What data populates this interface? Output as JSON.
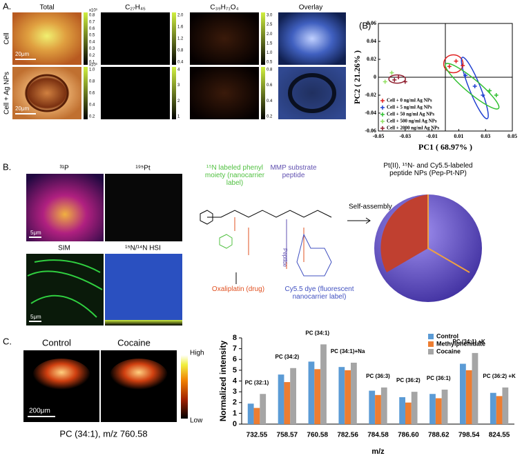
{
  "panel_a": {
    "label": "A.",
    "columns": [
      "Total",
      "C₂₇H₄₅",
      "C₃₉H₇₁O₄",
      "Overlay"
    ],
    "rows": [
      "Cell",
      "Cell + Ag NPs"
    ],
    "scale_bars": [
      "20μm",
      "20μm"
    ],
    "colorbars": [
      {
        "exponent": "x10³",
        "ticks": [
          "0.8",
          "0.7",
          "0.6",
          "0.5",
          "0.4",
          "0.3",
          "0.2",
          "0.1"
        ]
      },
      {
        "ticks": [
          "2.0",
          "1.6",
          "1.2",
          "0.8",
          "0.4"
        ]
      },
      {
        "ticks": [
          "3.0",
          "2.5",
          "2.0",
          "1.5",
          "1.0",
          "0.5"
        ]
      },
      {
        "exponent": "x10³",
        "ticks": [
          "1.0",
          "0.8",
          "0.6",
          "0.4",
          "0.2"
        ]
      },
      {
        "ticks": [
          "4",
          "3",
          "2",
          "1"
        ]
      },
      {
        "ticks": [
          "0.8",
          "0.6",
          "0.4",
          "0.2"
        ]
      }
    ],
    "pca": {
      "type": "scatter",
      "label": "(B)",
      "xlabel": "PC1 ( 68.97% )",
      "ylabel": "PC2 ( 21.26% )",
      "xlim": [
        -0.05,
        0.05
      ],
      "ylim": [
        -0.06,
        0.06
      ],
      "xticks": [
        -0.05,
        -0.03,
        -0.01,
        0.01,
        0.03,
        0.05
      ],
      "yticks": [
        0.06,
        0.04,
        0.02,
        0,
        -0.02,
        -0.04,
        -0.06
      ],
      "series": [
        {
          "name": "Cell + 0 ng/ml Ag NPs",
          "color": "#e02020",
          "x": [
            0.003,
            0.008,
            0.013
          ],
          "y": [
            0.012,
            0.018,
            0.013
          ]
        },
        {
          "name": "Cell + 5 ng/ml Ag NPs",
          "color": "#2040d0",
          "x": [
            0.015,
            0.022,
            0.028
          ],
          "y": [
            0.002,
            -0.01,
            -0.02
          ]
        },
        {
          "name": "Cell + 50 ng/ml Ag NPs",
          "color": "#30c030",
          "x": [
            0.033,
            0.038
          ],
          "y": [
            -0.015,
            -0.02
          ]
        },
        {
          "name": "Cell + 500 ng/ml Ag NPs",
          "color": "#90e060",
          "x": [
            -0.045,
            -0.04
          ],
          "y": [
            -0.005,
            0.005
          ]
        },
        {
          "name": "Cell + 2000 ng/ml Ag NPs",
          "color": "#902030",
          "x": [
            -0.035,
            -0.03,
            -0.038
          ],
          "y": [
            0.0,
            -0.005,
            -0.003
          ]
        }
      ]
    }
  },
  "panel_b": {
    "label": "B.",
    "images": [
      "³¹P",
      "¹⁹⁵Pt",
      "SIM",
      "¹⁵N/¹⁴N HSI"
    ],
    "scale_bars": [
      "5μm",
      "5μm"
    ],
    "scheme": {
      "phenyl_label": "¹⁵N labeled phenyl moiety (nanocarrier label)",
      "mmp_label": "MMP substrate peptide",
      "drug_label": "Oxaliplatin (drug)",
      "dye_label": "Cy5.5 dye (fluorescent nanocarrier label)",
      "peptide": "Peptide",
      "arrow_label": "Self-assembly",
      "product_label": "Pt(II), ¹⁵N- and Cy5.5-labeled peptide NPs (Pep-Pt-NP)"
    }
  },
  "panel_c": {
    "label": "C.",
    "images": [
      "Control",
      "Cocaine"
    ],
    "colorbar": [
      "High",
      "Low"
    ],
    "scale_bar": "200μm",
    "caption": "PC (34:1), m/z 760.58",
    "chart": {
      "type": "bar",
      "xlabel": "m/z",
      "ylabel": "Normalized intensity",
      "categories": [
        "732.55",
        "758.57",
        "760.58",
        "782.56",
        "784.58",
        "786.60",
        "788.62",
        "798.54",
        "824.55"
      ],
      "annotations": [
        "PC (32:1)",
        "PC (34:2)",
        "PC (34:1)",
        "PC (34:1)+Na",
        "PC (36:3)",
        "PC (36:2)",
        "PC (36:1)",
        "PC (34:1) +K",
        "PC (36:2) +K"
      ],
      "ylim": [
        0,
        8
      ],
      "yticks": [
        0,
        1,
        2,
        3,
        4,
        5,
        6,
        7,
        8
      ],
      "series": [
        {
          "name": "Control",
          "color": "#5b9bd5",
          "values": [
            1.9,
            4.6,
            5.8,
            5.3,
            3.1,
            2.5,
            2.8,
            5.6,
            2.9
          ]
        },
        {
          "name": "Methylphenidate",
          "color": "#ed7d31",
          "values": [
            1.5,
            3.9,
            5.1,
            5.0,
            2.7,
            2.0,
            2.4,
            5.0,
            2.6
          ]
        },
        {
          "name": "Cocaine",
          "color": "#a5a5a5",
          "values": [
            2.8,
            5.2,
            7.4,
            5.7,
            3.4,
            3.0,
            3.2,
            6.6,
            3.4
          ]
        }
      ]
    }
  }
}
